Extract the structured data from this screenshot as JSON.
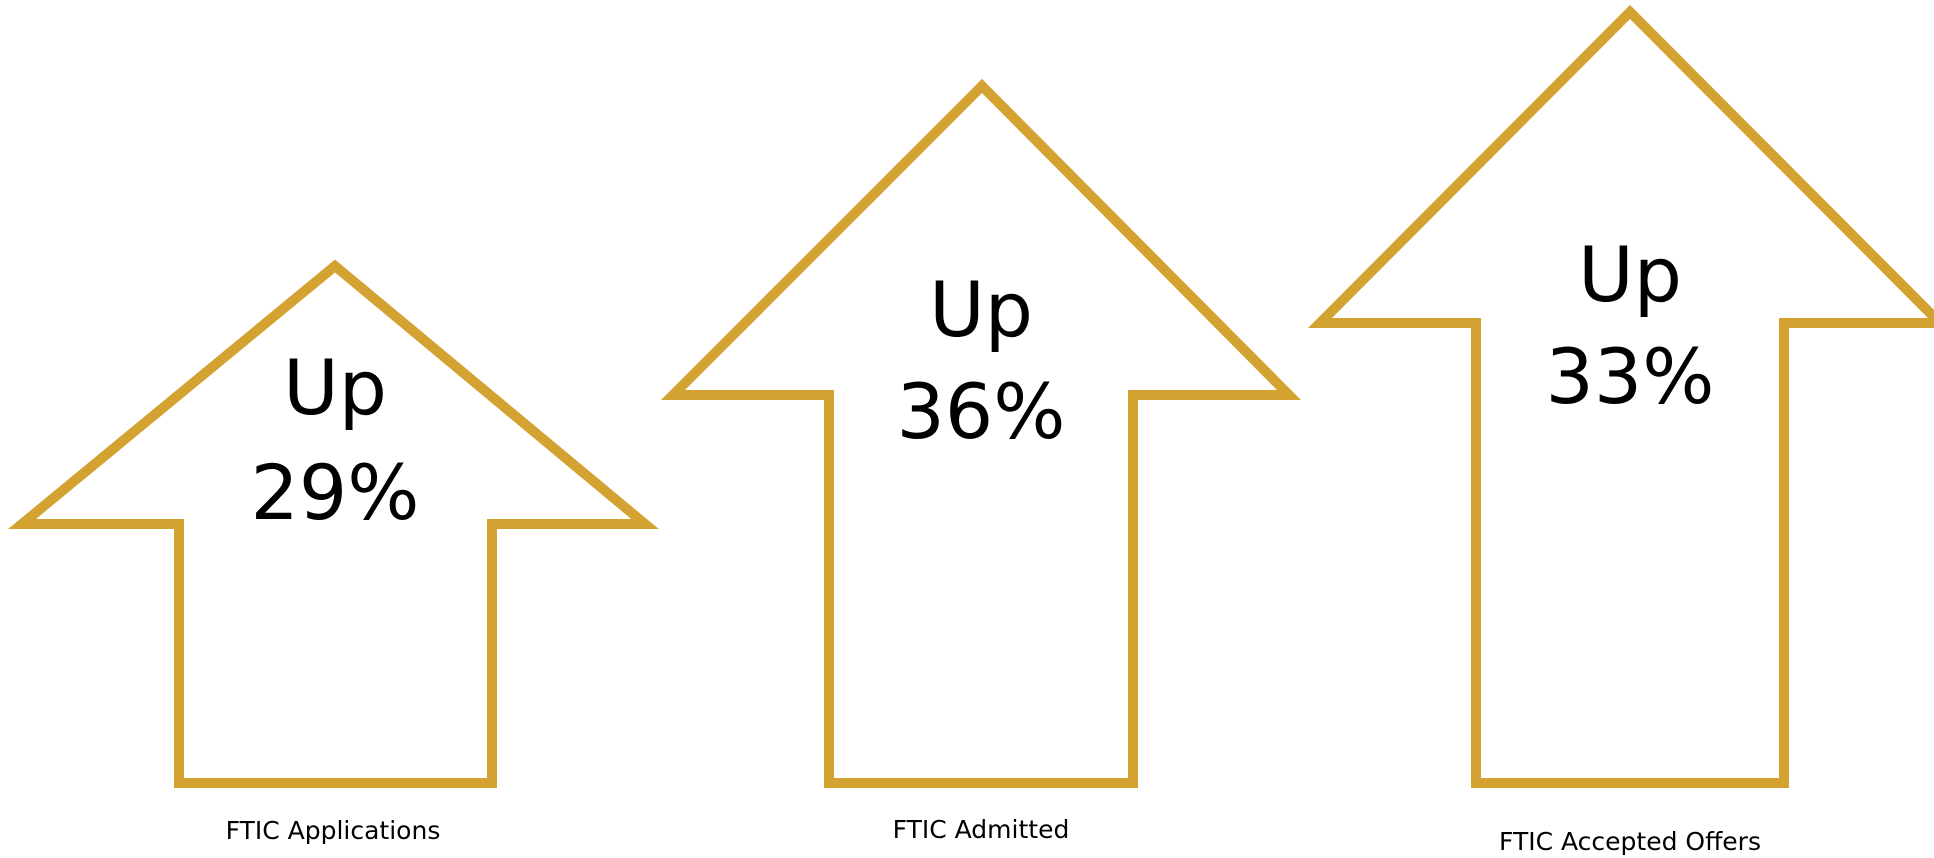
{
  "colors": {
    "arrow_outline": "#d4a230",
    "text": "#000000",
    "background": "#ffffff"
  },
  "arrows": [
    {
      "id": "applications",
      "direction": "Up",
      "value": "29%",
      "label": "FTIC Applications"
    },
    {
      "id": "admitted",
      "direction": "Up",
      "value": "36%",
      "label": "FTIC Admitted"
    },
    {
      "id": "accepted-offers",
      "direction": "Up",
      "value": "33%",
      "label": "FTIC Accepted Offers"
    }
  ]
}
